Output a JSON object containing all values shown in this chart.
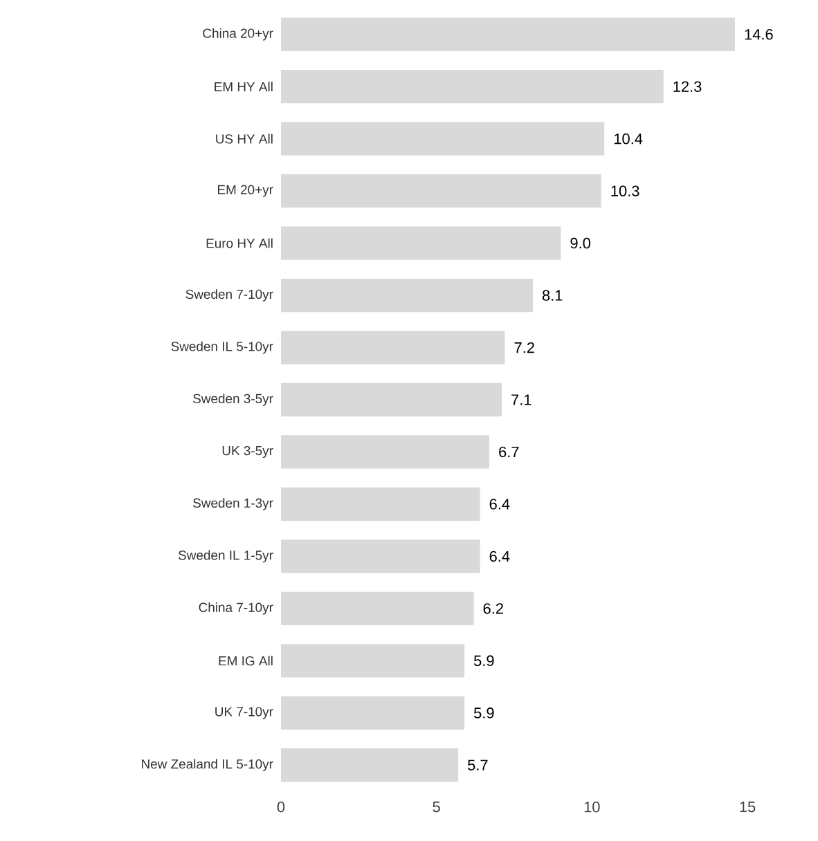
{
  "chart_data": {
    "type": "bar",
    "orientation": "horizontal",
    "categories": [
      "China 20+yr",
      "EM HY All",
      "US HY All",
      "EM 20+yr",
      "Euro HY All",
      "Sweden 7-10yr",
      "Sweden IL 5-10yr",
      "Sweden 3-5yr",
      "UK 3-5yr",
      "Sweden 1-3yr",
      "Sweden IL 1-5yr",
      "China 7-10yr",
      "EM IG All",
      "UK 7-10yr",
      "New Zealand IL 5-10yr"
    ],
    "values": [
      14.6,
      12.3,
      10.4,
      10.3,
      9.0,
      8.1,
      7.2,
      7.1,
      6.7,
      6.4,
      6.4,
      6.2,
      5.9,
      5.9,
      5.7
    ],
    "value_labels": [
      "14.6",
      "12.3",
      "10.4",
      "10.3",
      "9.0",
      "8.1",
      "7.2",
      "7.1",
      "6.7",
      "6.4",
      "6.4",
      "6.2",
      "5.9",
      "5.9",
      "5.7"
    ],
    "color": "#d9d9d9",
    "xlim": [
      0,
      15
    ],
    "xticks": [
      0,
      5,
      10,
      15
    ]
  }
}
